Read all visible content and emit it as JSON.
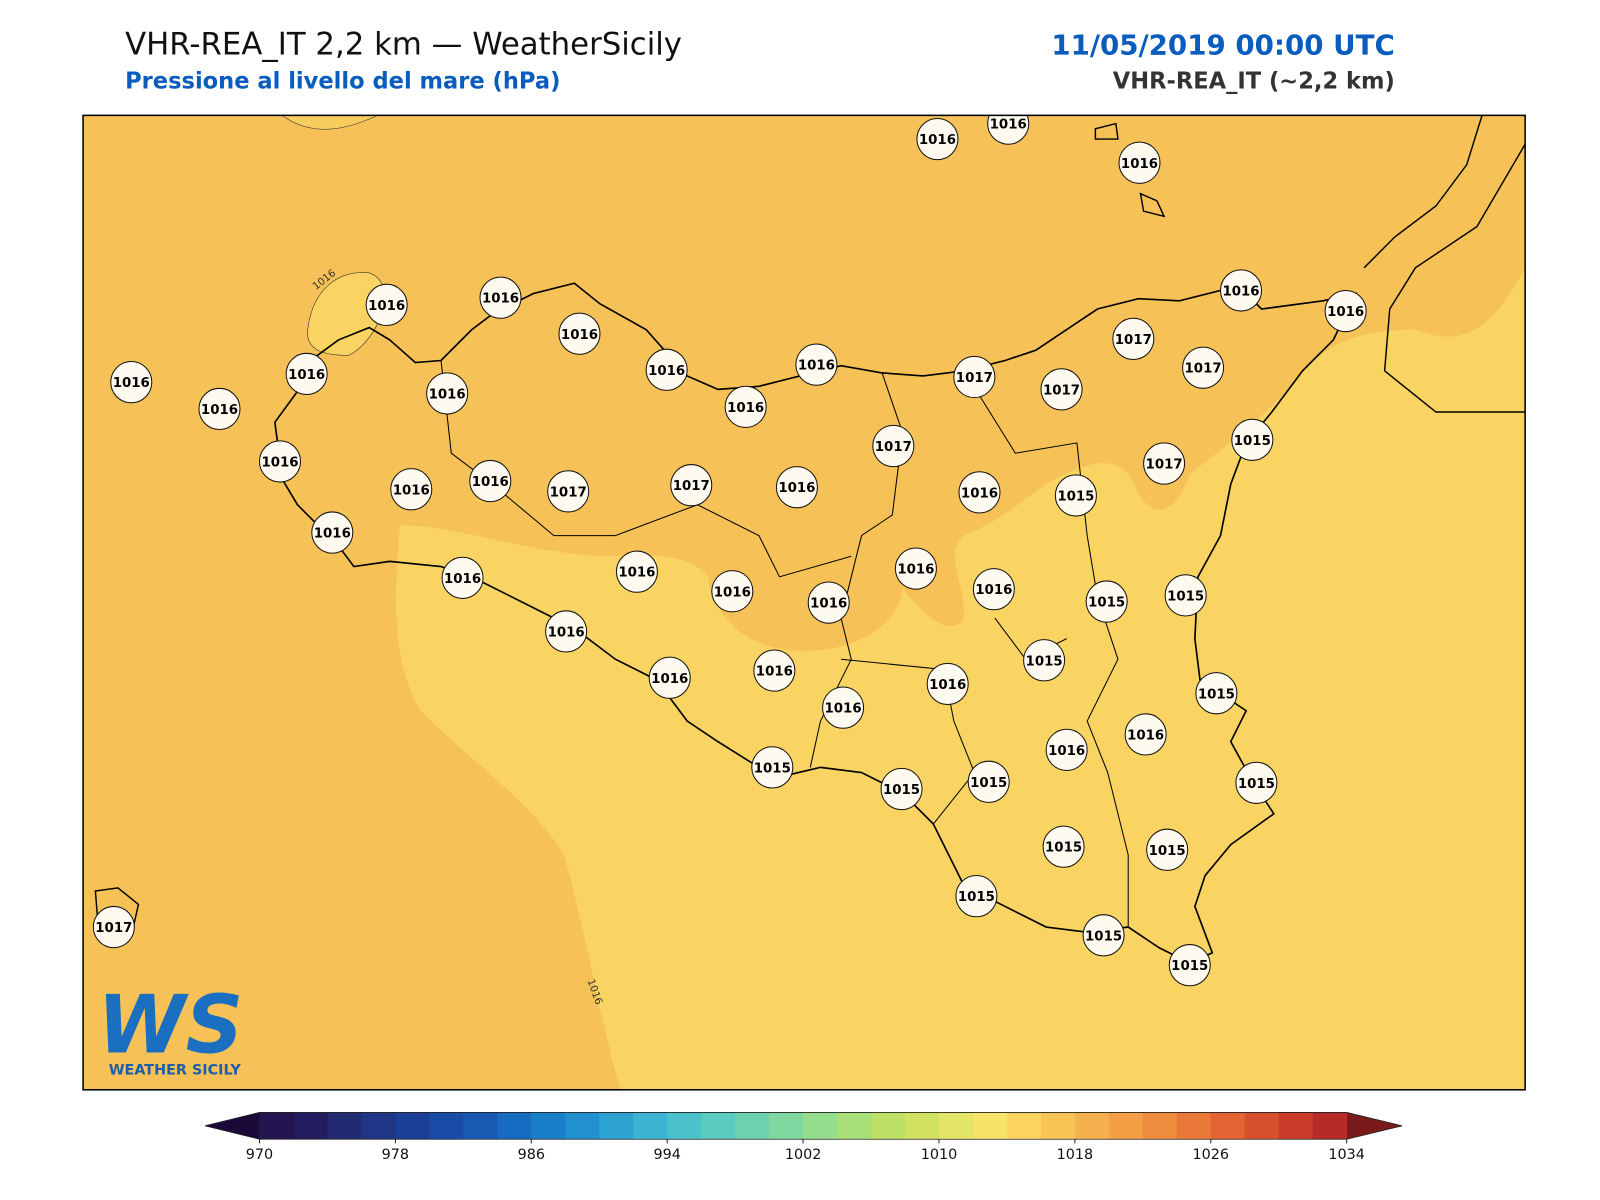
{
  "header": {
    "title": "VHR-REA_IT 2,2 km — WeatherSicily",
    "subtitle": "Pressione al livello del mare (hPa)",
    "date": "11/05/2019 00:00 UTC",
    "model": "VHR-REA_IT (~2,2 km)"
  },
  "map": {
    "stations": [
      1016,
      1016,
      1016,
      1016,
      1016,
      1016,
      1016,
      1016,
      1016,
      1016,
      1016,
      1016,
      1016,
      1016,
      1016,
      1017,
      1017,
      1017,
      1017,
      1015,
      1017,
      1017,
      1016,
      1016,
      1016,
      1017,
      1017,
      1016,
      1016,
      1015,
      1016,
      1016,
      1016,
      1016,
      1016,
      1016,
      1016,
      1015,
      1015,
      1016,
      1016,
      1016,
      1016,
      1016,
      1015,
      1015,
      1016,
      1016,
      1015,
      1015,
      1015,
      1015,
      1015,
      1015,
      1015,
      1015,
      1015,
      1017
    ],
    "contour_labels": [
      1016,
      1016
    ],
    "colors": {
      "sea": "#f6c257",
      "low": "#fad462"
    }
  },
  "logo": {
    "mark": "WS",
    "text": "WEATHER SICILY"
  },
  "colorbar": {
    "range": [
      970,
      1034
    ],
    "ticks": [
      970,
      978,
      986,
      994,
      1002,
      1010,
      1018,
      1026,
      1034
    ],
    "colors": [
      "#241450",
      "#231c5e",
      "#222a72",
      "#1f3585",
      "#1b3f96",
      "#1a4ba6",
      "#1959b4",
      "#176bc0",
      "#1a7fc9",
      "#2290cf",
      "#2da3d2",
      "#3bb4d1",
      "#4bc2cb",
      "#5ccbbf",
      "#6dd1b0",
      "#80d79f",
      "#95dc8c",
      "#a9df78",
      "#bde066",
      "#d0e25f",
      "#e2e565",
      "#f5e36a",
      "#fbd45f",
      "#f8c456",
      "#f5b14d",
      "#f29f45",
      "#ef8d3e",
      "#ea7838",
      "#e36332",
      "#d84f2e",
      "#c93b2b",
      "#b72a28"
    ],
    "under": "#1a0a3a",
    "over": "#7a1a1a"
  }
}
